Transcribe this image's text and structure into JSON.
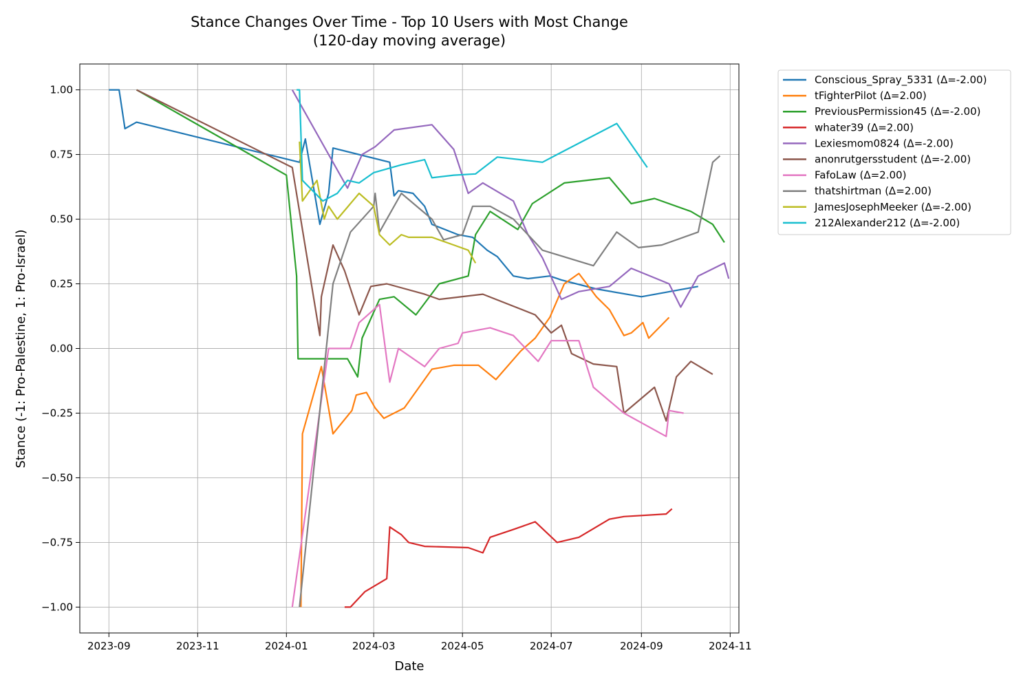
{
  "chart_data": {
    "type": "line",
    "title": "Stance Changes Over Time - Top 10 Users with Most Change",
    "subtitle": "(120-day moving average)",
    "xlabel": "Date",
    "ylabel": "Stance (-1: Pro-Palestine, 1: Pro-Israel)",
    "x_ticks": [
      "2023-09",
      "2023-11",
      "2024-01",
      "2024-03",
      "2024-05",
      "2024-07",
      "2024-09",
      "2024-11"
    ],
    "y_ticks": [
      "1.00",
      "0.75",
      "0.50",
      "0.25",
      "0.00",
      "−0.25",
      "−0.50",
      "−0.75",
      "−1.00"
    ],
    "xlim": [
      "2023-08-12",
      "2024-11-07"
    ],
    "ylim": [
      -1.1,
      1.1
    ],
    "grid": true,
    "legend_position": "outside-upper-right",
    "series": [
      {
        "name": "Conscious_Spray_5331 (Δ=-2.00)",
        "color": "#1f77b4",
        "points": [
          [
            "2023-09-01",
            1.0
          ],
          [
            "2023-09-08",
            1.0
          ],
          [
            "2023-09-12",
            0.85
          ],
          [
            "2023-09-20",
            0.875
          ],
          [
            "2024-01-10",
            0.72
          ],
          [
            "2024-01-14",
            0.81
          ],
          [
            "2024-01-24",
            0.48
          ],
          [
            "2024-01-30",
            0.6
          ],
          [
            "2024-02-02",
            0.775
          ],
          [
            "2024-03-12",
            0.72
          ],
          [
            "2024-03-15",
            0.59
          ],
          [
            "2024-03-18",
            0.61
          ],
          [
            "2024-03-28",
            0.6
          ],
          [
            "2024-04-05",
            0.55
          ],
          [
            "2024-04-10",
            0.48
          ],
          [
            "2024-04-28",
            0.44
          ],
          [
            "2024-05-08",
            0.43
          ],
          [
            "2024-05-18",
            0.38
          ],
          [
            "2024-05-25",
            0.355
          ],
          [
            "2024-06-02",
            0.3
          ],
          [
            "2024-06-05",
            0.28
          ],
          [
            "2024-06-15",
            0.27
          ],
          [
            "2024-06-30",
            0.28
          ],
          [
            "2024-07-08",
            0.265
          ],
          [
            "2024-08-01",
            0.23
          ],
          [
            "2024-09-01",
            0.2
          ],
          [
            "2024-10-10",
            0.24
          ]
        ]
      },
      {
        "name": "tFighterPilot (Δ=2.00)",
        "color": "#ff7f0e",
        "points": [
          [
            "2024-01-11",
            -1.0
          ],
          [
            "2024-01-12",
            -0.33
          ],
          [
            "2024-01-25",
            -0.07
          ],
          [
            "2024-02-02",
            -0.33
          ],
          [
            "2024-02-15",
            -0.24
          ],
          [
            "2024-02-18",
            -0.18
          ],
          [
            "2024-02-25",
            -0.17
          ],
          [
            "2024-03-02",
            -0.23
          ],
          [
            "2024-03-08",
            -0.27
          ],
          [
            "2024-03-22",
            -0.23
          ],
          [
            "2024-04-10",
            -0.08
          ],
          [
            "2024-04-25",
            -0.065
          ],
          [
            "2024-05-12",
            -0.065
          ],
          [
            "2024-05-24",
            -0.12
          ],
          [
            "2024-06-10",
            -0.01
          ],
          [
            "2024-06-20",
            0.04
          ],
          [
            "2024-06-30",
            0.12
          ],
          [
            "2024-07-10",
            0.25
          ],
          [
            "2024-07-20",
            0.29
          ],
          [
            "2024-08-01",
            0.2
          ],
          [
            "2024-08-10",
            0.15
          ],
          [
            "2024-08-20",
            0.05
          ],
          [
            "2024-08-25",
            0.06
          ],
          [
            "2024-09-02",
            0.1
          ],
          [
            "2024-09-06",
            0.04
          ],
          [
            "2024-09-20",
            0.12
          ]
        ]
      },
      {
        "name": "PreviousPermission45 (Δ=-2.00)",
        "color": "#2ca02c",
        "points": [
          [
            "2023-09-20",
            1.0
          ],
          [
            "2024-01-01",
            0.67
          ],
          [
            "2024-01-08",
            0.28
          ],
          [
            "2024-01-09",
            -0.04
          ],
          [
            "2024-02-12",
            -0.04
          ],
          [
            "2024-02-19",
            -0.11
          ],
          [
            "2024-02-22",
            0.04
          ],
          [
            "2024-03-05",
            0.19
          ],
          [
            "2024-03-15",
            0.2
          ],
          [
            "2024-03-30",
            0.13
          ],
          [
            "2024-04-15",
            0.25
          ],
          [
            "2024-05-05",
            0.28
          ],
          [
            "2024-05-10",
            0.44
          ],
          [
            "2024-05-20",
            0.53
          ],
          [
            "2024-06-08",
            0.46
          ],
          [
            "2024-06-18",
            0.56
          ],
          [
            "2024-07-10",
            0.64
          ],
          [
            "2024-08-10",
            0.66
          ],
          [
            "2024-08-25",
            0.56
          ],
          [
            "2024-09-10",
            0.58
          ],
          [
            "2024-10-05",
            0.53
          ],
          [
            "2024-10-20",
            0.48
          ],
          [
            "2024-10-28",
            0.41
          ]
        ]
      },
      {
        "name": "whater39 (Δ=2.00)",
        "color": "#d62728",
        "points": [
          [
            "2024-02-10",
            -1.0
          ],
          [
            "2024-02-14",
            -1.0
          ],
          [
            "2024-02-24",
            -0.94
          ],
          [
            "2024-03-10",
            -0.89
          ],
          [
            "2024-03-12",
            -0.69
          ],
          [
            "2024-03-20",
            -0.72
          ],
          [
            "2024-03-25",
            -0.75
          ],
          [
            "2024-04-05",
            -0.765
          ],
          [
            "2024-05-05",
            -0.77
          ],
          [
            "2024-05-15",
            -0.79
          ],
          [
            "2024-05-20",
            -0.73
          ],
          [
            "2024-06-05",
            -0.7
          ],
          [
            "2024-06-20",
            -0.67
          ],
          [
            "2024-07-05",
            -0.75
          ],
          [
            "2024-07-20",
            -0.73
          ],
          [
            "2024-08-10",
            -0.66
          ],
          [
            "2024-08-20",
            -0.65
          ],
          [
            "2024-09-18",
            -0.64
          ],
          [
            "2024-09-22",
            -0.62
          ]
        ]
      },
      {
        "name": "Lexiesmom0824 (Δ=-2.00)",
        "color": "#9467bd",
        "points": [
          [
            "2024-01-05",
            1.0
          ],
          [
            "2024-02-12",
            0.62
          ],
          [
            "2024-02-22",
            0.75
          ],
          [
            "2024-03-02",
            0.78
          ],
          [
            "2024-03-15",
            0.845
          ],
          [
            "2024-04-10",
            0.865
          ],
          [
            "2024-04-25",
            0.77
          ],
          [
            "2024-05-05",
            0.6
          ],
          [
            "2024-05-15",
            0.64
          ],
          [
            "2024-06-05",
            0.57
          ],
          [
            "2024-06-15",
            0.44
          ],
          [
            "2024-06-25",
            0.35
          ],
          [
            "2024-07-08",
            0.19
          ],
          [
            "2024-07-20",
            0.22
          ],
          [
            "2024-08-10",
            0.24
          ],
          [
            "2024-08-25",
            0.31
          ],
          [
            "2024-09-20",
            0.25
          ],
          [
            "2024-09-28",
            0.16
          ],
          [
            "2024-10-10",
            0.28
          ],
          [
            "2024-10-28",
            0.33
          ],
          [
            "2024-10-31",
            0.27
          ]
        ]
      },
      {
        "name": "anonrutgersstudent (Δ=-2.00)",
        "color": "#8c564b",
        "points": [
          [
            "2023-09-20",
            1.0
          ],
          [
            "2024-01-05",
            0.7
          ],
          [
            "2024-01-24",
            0.05
          ],
          [
            "2024-01-25",
            0.2
          ],
          [
            "2024-02-02",
            0.4
          ],
          [
            "2024-02-10",
            0.3
          ],
          [
            "2024-02-20",
            0.13
          ],
          [
            "2024-02-28",
            0.24
          ],
          [
            "2024-03-10",
            0.25
          ],
          [
            "2024-04-05",
            0.21
          ],
          [
            "2024-04-15",
            0.19
          ],
          [
            "2024-05-15",
            0.21
          ],
          [
            "2024-06-20",
            0.13
          ],
          [
            "2024-07-01",
            0.06
          ],
          [
            "2024-07-08",
            0.09
          ],
          [
            "2024-07-15",
            -0.02
          ],
          [
            "2024-07-30",
            -0.06
          ],
          [
            "2024-08-15",
            -0.07
          ],
          [
            "2024-08-20",
            -0.25
          ],
          [
            "2024-09-10",
            -0.15
          ],
          [
            "2024-09-18",
            -0.28
          ],
          [
            "2024-09-25",
            -0.11
          ],
          [
            "2024-10-05",
            -0.05
          ],
          [
            "2024-10-20",
            -0.1
          ]
        ]
      },
      {
        "name": "FafoLaw (Δ=2.00)",
        "color": "#e377c2",
        "points": [
          [
            "2024-01-05",
            -1.0
          ],
          [
            "2024-01-30",
            0.0
          ],
          [
            "2024-02-14",
            0.0
          ],
          [
            "2024-02-20",
            0.1
          ],
          [
            "2024-03-05",
            0.17
          ],
          [
            "2024-03-12",
            -0.13
          ],
          [
            "2024-03-18",
            0.0
          ],
          [
            "2024-04-05",
            -0.07
          ],
          [
            "2024-04-15",
            0.0
          ],
          [
            "2024-04-28",
            0.02
          ],
          [
            "2024-05-01",
            0.06
          ],
          [
            "2024-05-20",
            0.08
          ],
          [
            "2024-06-05",
            0.05
          ],
          [
            "2024-06-22",
            -0.05
          ],
          [
            "2024-07-01",
            0.03
          ],
          [
            "2024-07-20",
            0.03
          ],
          [
            "2024-07-30",
            -0.15
          ],
          [
            "2024-08-20",
            -0.25
          ],
          [
            "2024-09-18",
            -0.34
          ],
          [
            "2024-09-20",
            -0.24
          ],
          [
            "2024-09-30",
            -0.25
          ]
        ]
      },
      {
        "name": "thatshirtman (Δ=2.00)",
        "color": "#7f7f7f",
        "points": [
          [
            "2024-01-10",
            -1.0
          ],
          [
            "2024-02-02",
            0.25
          ],
          [
            "2024-02-14",
            0.45
          ],
          [
            "2024-03-01",
            0.55
          ],
          [
            "2024-03-02",
            0.6
          ],
          [
            "2024-03-05",
            0.45
          ],
          [
            "2024-03-20",
            0.6
          ],
          [
            "2024-04-10",
            0.5
          ],
          [
            "2024-04-18",
            0.42
          ],
          [
            "2024-05-01",
            0.44
          ],
          [
            "2024-05-08",
            0.55
          ],
          [
            "2024-05-20",
            0.55
          ],
          [
            "2024-06-05",
            0.5
          ],
          [
            "2024-06-15",
            0.44
          ],
          [
            "2024-06-25",
            0.38
          ],
          [
            "2024-07-30",
            0.32
          ],
          [
            "2024-08-15",
            0.45
          ],
          [
            "2024-08-30",
            0.39
          ],
          [
            "2024-09-15",
            0.4
          ],
          [
            "2024-10-10",
            0.45
          ],
          [
            "2024-10-20",
            0.72
          ],
          [
            "2024-10-25",
            0.745
          ]
        ]
      },
      {
        "name": "JamesJosephMeeker (Δ=-2.00)",
        "color": "#bcbd22",
        "points": [
          [
            "2024-01-10",
            0.8
          ],
          [
            "2024-01-12",
            0.57
          ],
          [
            "2024-01-22",
            0.65
          ],
          [
            "2024-01-27",
            0.5
          ],
          [
            "2024-01-30",
            0.55
          ],
          [
            "2024-02-05",
            0.5
          ],
          [
            "2024-02-20",
            0.6
          ],
          [
            "2024-03-01",
            0.55
          ],
          [
            "2024-03-05",
            0.44
          ],
          [
            "2024-03-12",
            0.4
          ],
          [
            "2024-03-20",
            0.44
          ],
          [
            "2024-03-25",
            0.43
          ],
          [
            "2024-04-10",
            0.43
          ],
          [
            "2024-04-25",
            0.4
          ],
          [
            "2024-05-05",
            0.38
          ],
          [
            "2024-05-10",
            0.33
          ]
        ]
      },
      {
        "name": "212Alexander212 (Δ=-2.00)",
        "color": "#17becf",
        "points": [
          [
            "2024-01-08",
            1.0
          ],
          [
            "2024-01-10",
            1.0
          ],
          [
            "2024-01-12",
            0.65
          ],
          [
            "2024-01-26",
            0.57
          ],
          [
            "2024-02-05",
            0.6
          ],
          [
            "2024-02-12",
            0.65
          ],
          [
            "2024-02-20",
            0.64
          ],
          [
            "2024-03-01",
            0.68
          ],
          [
            "2024-03-20",
            0.71
          ],
          [
            "2024-04-05",
            0.73
          ],
          [
            "2024-04-10",
            0.66
          ],
          [
            "2024-04-25",
            0.67
          ],
          [
            "2024-05-10",
            0.675
          ],
          [
            "2024-05-25",
            0.74
          ],
          [
            "2024-06-25",
            0.72
          ],
          [
            "2024-07-05",
            0.75
          ],
          [
            "2024-08-15",
            0.87
          ],
          [
            "2024-09-05",
            0.7
          ]
        ]
      }
    ]
  }
}
